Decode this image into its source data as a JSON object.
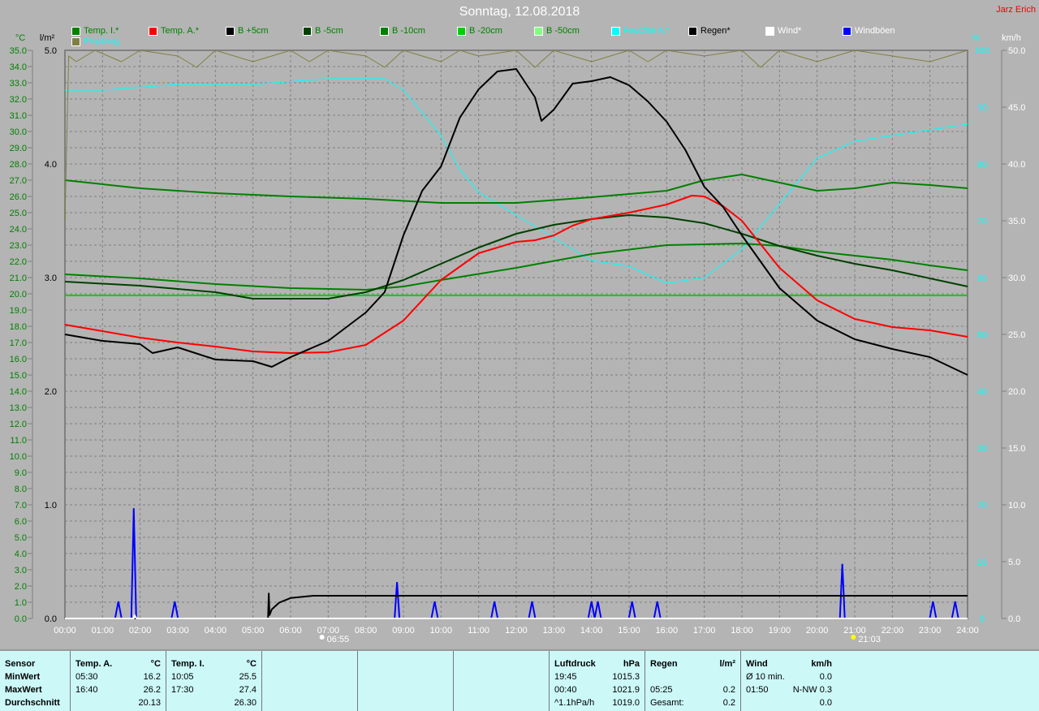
{
  "title": "Sonntag, 12.08.2018",
  "author": "Jarz Erich",
  "legend": [
    {
      "label": "Temp. I.*",
      "color": "#008000",
      "text": "#008000"
    },
    {
      "label": "Temp. A.*",
      "color": "#ff0000",
      "text": "#008000"
    },
    {
      "label": "B +5cm",
      "color": "#000000",
      "text": "#008000"
    },
    {
      "label": "B -5cm",
      "color": "#004000",
      "text": "#008000"
    },
    {
      "label": "B -10cm",
      "color": "#008000",
      "text": "#008000"
    },
    {
      "label": "B -20cm",
      "color": "#00d000",
      "text": "#008000"
    },
    {
      "label": "B -50cm",
      "color": "#80ff80",
      "text": "#008000"
    },
    {
      "label": "Feuchte A.*",
      "color": "#00ffff",
      "text": "#00ffff"
    },
    {
      "label": "Regen*",
      "color": "#000000",
      "text": "#000000"
    },
    {
      "label": "Wind*",
      "color": "#ffffff",
      "text": "#ffffff"
    },
    {
      "label": "Windböen",
      "color": "#0000ff",
      "text": "#ffffff"
    },
    {
      "label": "Empfang",
      "color": "#808040",
      "text": "#00ffff"
    }
  ],
  "axes": {
    "left_unit": "°C",
    "left2_unit": "l/m²",
    "right_unit": "%",
    "right2_unit": "km/h",
    "x_ticks": [
      "00:00",
      "01:00",
      "02:00",
      "03:00",
      "04:00",
      "05:00",
      "06:00",
      "07:00",
      "08:00",
      "09:00",
      "10:00",
      "11:00",
      "12:00",
      "13:00",
      "14:00",
      "15:00",
      "16:00",
      "17:00",
      "18:00",
      "19:00",
      "20:00",
      "21:00",
      "22:00",
      "23:00",
      "24:00"
    ],
    "temp_range": [
      0,
      35
    ],
    "rain_range": [
      0,
      5
    ],
    "humidity_range": [
      0,
      100
    ],
    "wind_range": [
      0,
      50
    ],
    "grid": true
  },
  "sun": {
    "sunrise": "06:55",
    "sunset": "21:03"
  },
  "chart_data": {
    "type": "line",
    "xlabel": "",
    "x_unit": "hour",
    "series": [
      {
        "name": "Temp. I.*",
        "axis": "°C",
        "color": "#008000",
        "x": [
          0,
          2,
          4,
          6,
          8,
          10,
          12,
          14,
          16,
          17,
          18,
          19,
          20,
          21,
          22,
          23,
          24
        ],
        "y": [
          27.0,
          26.5,
          26.2,
          26.0,
          25.85,
          25.6,
          25.6,
          25.95,
          26.35,
          27.0,
          27.35,
          26.85,
          26.35,
          26.5,
          26.85,
          26.7,
          26.5
        ]
      },
      {
        "name": "Temp. A.*",
        "axis": "°C",
        "color": "#ff0000",
        "x": [
          0,
          1,
          2,
          3,
          4,
          5,
          6,
          7,
          8,
          9,
          10,
          11,
          12,
          12.5,
          13,
          13.5,
          14,
          15,
          16,
          16.67,
          17,
          17.5,
          18,
          19,
          20,
          21,
          22,
          23,
          24
        ],
        "y": [
          18.1,
          17.7,
          17.3,
          17.0,
          16.75,
          16.45,
          16.35,
          16.4,
          16.85,
          18.35,
          20.85,
          22.5,
          23.2,
          23.3,
          23.6,
          24.2,
          24.6,
          25.0,
          25.5,
          26.05,
          26.0,
          25.4,
          24.5,
          21.6,
          19.6,
          18.45,
          17.95,
          17.75,
          17.35
        ]
      },
      {
        "name": "B +5cm",
        "axis": "°C",
        "color": "#000000",
        "x": [
          0,
          1,
          2,
          2.33,
          3,
          4,
          5,
          5.5,
          6,
          7,
          8,
          8.5,
          9,
          9.5,
          10,
          10.5,
          11,
          11.5,
          12,
          12.5,
          12.67,
          13,
          13.5,
          14,
          14.5,
          15,
          15.5,
          16,
          16.5,
          17,
          17.5,
          18,
          19,
          20,
          21,
          22,
          23,
          24
        ],
        "y": [
          17.5,
          17.1,
          16.9,
          16.35,
          16.7,
          15.95,
          15.85,
          15.5,
          16.1,
          17.1,
          18.85,
          20.1,
          23.6,
          26.35,
          27.85,
          30.85,
          32.6,
          33.7,
          33.85,
          32.1,
          30.65,
          31.35,
          32.95,
          33.1,
          33.35,
          32.85,
          31.85,
          30.6,
          28.85,
          26.6,
          25.35,
          23.6,
          20.35,
          18.35,
          17.2,
          16.6,
          16.1,
          15.0
        ]
      },
      {
        "name": "B -5cm",
        "axis": "°C",
        "color": "#004000",
        "x": [
          0,
          2,
          4,
          5,
          7,
          8,
          9,
          10,
          11,
          12,
          13,
          14,
          15,
          16,
          17,
          18,
          19,
          20,
          21,
          22,
          23,
          24
        ],
        "y": [
          20.75,
          20.5,
          20.1,
          19.7,
          19.7,
          20.1,
          20.85,
          21.85,
          22.85,
          23.7,
          24.25,
          24.6,
          24.85,
          24.7,
          24.35,
          23.7,
          22.95,
          22.35,
          21.85,
          21.45,
          20.95,
          20.45
        ]
      },
      {
        "name": "B -10cm",
        "axis": "°C",
        "color": "#008000",
        "x": [
          0,
          2,
          4,
          6,
          8,
          9,
          10,
          12,
          14,
          16,
          18,
          19,
          20,
          22,
          23,
          24
        ],
        "y": [
          21.2,
          20.95,
          20.6,
          20.35,
          20.25,
          20.45,
          20.85,
          21.6,
          22.45,
          23.0,
          23.1,
          22.95,
          22.6,
          22.1,
          21.75,
          21.45
        ]
      },
      {
        "name": "B -20cm",
        "axis": "°C",
        "color": "#00d000",
        "x": [
          0,
          24
        ],
        "y": [
          19.9,
          19.9
        ]
      },
      {
        "name": "B -50cm",
        "axis": "°C",
        "color": "#80ff80",
        "x": [
          0,
          24
        ],
        "y": [
          0,
          0
        ]
      },
      {
        "name": "Feuchte A.*",
        "axis": "%",
        "color": "#00ffff",
        "x": [
          0,
          1,
          3,
          5,
          7,
          8.5,
          9,
          10,
          10.5,
          11,
          12,
          13,
          14,
          15,
          16,
          17,
          18,
          19,
          20,
          21,
          22,
          23,
          24
        ],
        "y": [
          93,
          93,
          94,
          94,
          95,
          95,
          93,
          85,
          79,
          75,
          71,
          67,
          63,
          62,
          59,
          60,
          65,
          73,
          81,
          84,
          85,
          86,
          87
        ]
      },
      {
        "name": "Empfang",
        "axis": "%",
        "color": "#808040",
        "x": [
          0,
          0.1,
          0.3,
          0.8,
          1.5,
          2,
          3,
          3.5,
          4,
          5,
          6,
          6.5,
          7,
          8,
          8.5,
          9,
          10,
          10.5,
          11,
          12,
          12.5,
          13,
          14,
          15,
          15.5,
          16,
          17,
          18,
          18.5,
          19,
          20,
          21,
          22,
          23,
          24
        ],
        "y": [
          70,
          99,
          98,
          100,
          98,
          100,
          99,
          97,
          100,
          98,
          100,
          98,
          100,
          99,
          97,
          100,
          98,
          100,
          99,
          100,
          97,
          100,
          98,
          100,
          98,
          100,
          99,
          100,
          97,
          100,
          98,
          100,
          99,
          98,
          100
        ]
      },
      {
        "name": "Regen*",
        "axis": "l/m²",
        "color": "#000000",
        "x": [
          0,
          5.4,
          5.42,
          5.44,
          5.5,
          5.7,
          6,
          6.6,
          24
        ],
        "y": [
          0,
          0,
          0.22,
          0.03,
          0.08,
          0.14,
          0.18,
          0.2,
          0.2
        ]
      },
      {
        "name": "Wind*",
        "axis": "km/h",
        "color": "#ffffff",
        "x": [
          0,
          1.83,
          1.85,
          1.9,
          24
        ],
        "y": [
          0,
          0,
          0.3,
          0,
          0
        ]
      },
      {
        "name": "Windböen",
        "axis": "km/h",
        "color": "#0000ff",
        "type": "spikes",
        "x": [
          1.42,
          1.83,
          2.92,
          8.83,
          9.83,
          11.42,
          12.42,
          14.0,
          14.17,
          15.08,
          15.75,
          20.67,
          23.08,
          23.67
        ],
        "y": [
          1.5,
          9.7,
          1.5,
          3.2,
          1.5,
          1.5,
          1.5,
          1.5,
          1.5,
          1.5,
          1.5,
          4.8,
          1.5,
          1.5
        ]
      }
    ]
  },
  "table": {
    "sensor": [
      "Sensor",
      "MinWert",
      "MaxWert",
      "Durchschnitt"
    ],
    "temp_a": {
      "head": "Temp. A.",
      "unit": "°C",
      "rows": [
        [
          "05:30",
          "16.2"
        ],
        [
          "16:40",
          "26.2"
        ],
        [
          "",
          "20.13"
        ]
      ]
    },
    "temp_i": {
      "head": "Temp. I.",
      "unit": "°C",
      "rows": [
        [
          "10:05",
          "25.5"
        ],
        [
          "17:30",
          "27.4"
        ],
        [
          "",
          "26.30"
        ]
      ]
    },
    "luftdruck": {
      "head": "Luftdruck",
      "unit": "hPa",
      "rows": [
        [
          "19:45",
          "1015.3"
        ],
        [
          "00:40",
          "1021.9"
        ],
        [
          "^1.1hPa/h",
          "1019.0"
        ]
      ]
    },
    "regen": {
      "head": "Regen",
      "unit": "l/m²",
      "rows": [
        [
          "",
          ""
        ],
        [
          "05:25",
          "0.2"
        ],
        [
          "Gesamt:",
          "0.2"
        ]
      ]
    },
    "wind": {
      "head": "Wind",
      "unit": "km/h",
      "rows": [
        [
          "Ø 10 min.",
          "0.0"
        ],
        [
          "01:50",
          "N-NW 0.3"
        ],
        [
          "",
          "0.0"
        ]
      ]
    }
  }
}
